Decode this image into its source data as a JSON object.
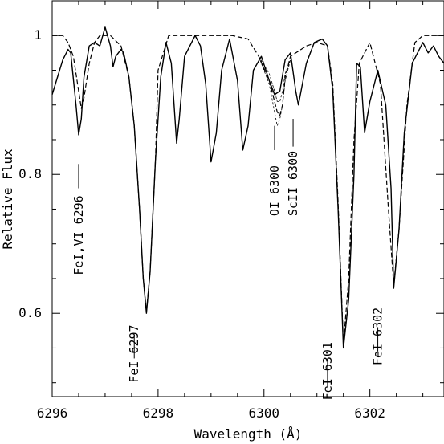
{
  "chart_data": {
    "type": "line",
    "xlabel": "Wavelength (Å)",
    "ylabel": "Relative Flux",
    "xlim": [
      6296.0,
      6303.4
    ],
    "ylim": [
      0.48,
      1.05
    ],
    "xticks": [
      6296,
      6298,
      6300,
      6302
    ],
    "xtick_labels": [
      "6296",
      "6298",
      "6300",
      "6302"
    ],
    "yticks": [
      0.6,
      0.8,
      1.0
    ],
    "ytick_labels": [
      "0.6",
      "0.8",
      "1"
    ],
    "grid": false,
    "series": [
      {
        "style": "solid",
        "x": [
          6296.0,
          6296.1,
          6296.2,
          6296.3,
          6296.35,
          6296.45,
          6296.5,
          6296.55,
          6296.6,
          6296.7,
          6296.8,
          6296.9,
          6297.0,
          6297.1,
          6297.15,
          6297.2,
          6297.3,
          6297.35,
          6297.45,
          6297.55,
          6297.65,
          6297.72,
          6297.78,
          6297.85,
          6297.95,
          6298.05,
          6298.15,
          6298.25,
          6298.35,
          6298.4,
          6298.5,
          6298.6,
          6298.7,
          6298.8,
          6298.9,
          6299.0,
          6299.1,
          6299.2,
          6299.35,
          6299.5,
          6299.6,
          6299.7,
          6299.8,
          6299.95,
          6300.1,
          6300.2,
          6300.3,
          6300.4,
          6300.5,
          6300.6,
          6300.65,
          6300.8,
          6300.95,
          6301.1,
          6301.2,
          6301.3,
          6301.4,
          6301.5,
          6301.6,
          6301.7,
          6301.75,
          6301.82,
          6301.9,
          6302.0,
          6302.15,
          6302.3,
          6302.4,
          6302.45,
          6302.55,
          6302.65,
          6302.8,
          6303.0,
          6303.1,
          6303.2,
          6303.3,
          6303.4
        ],
        "y": [
          0.915,
          0.94,
          0.965,
          0.98,
          0.975,
          0.9,
          0.857,
          0.88,
          0.94,
          0.985,
          0.99,
          0.985,
          1.012,
          0.985,
          0.955,
          0.97,
          0.98,
          0.975,
          0.94,
          0.87,
          0.75,
          0.65,
          0.6,
          0.66,
          0.82,
          0.94,
          0.99,
          0.96,
          0.845,
          0.88,
          0.97,
          0.985,
          1.0,
          0.985,
          0.93,
          0.818,
          0.86,
          0.95,
          0.995,
          0.935,
          0.835,
          0.87,
          0.95,
          0.97,
          0.935,
          0.915,
          0.92,
          0.965,
          0.975,
          0.92,
          0.9,
          0.96,
          0.99,
          0.995,
          0.985,
          0.92,
          0.75,
          0.55,
          0.62,
          0.8,
          0.96,
          0.955,
          0.86,
          0.905,
          0.95,
          0.9,
          0.78,
          0.636,
          0.72,
          0.86,
          0.96,
          0.99,
          0.975,
          0.985,
          0.97,
          0.96
        ]
      },
      {
        "style": "dashed",
        "x": [
          6296.0,
          6296.2,
          6296.3,
          6296.4,
          6296.5,
          6296.55,
          6296.6,
          6296.7,
          6296.8,
          6296.9,
          6297.1,
          6297.3,
          6297.45,
          6297.55,
          6297.65,
          6297.72,
          6297.78,
          6297.85,
          6297.95,
          6298.0,
          6298.2,
          6298.6,
          6299.0,
          6299.4,
          6299.7,
          6299.9,
          6300.1,
          6300.2,
          6300.25,
          6300.3,
          6300.35,
          6300.4,
          6300.5,
          6300.6,
          6300.8,
          6301.0,
          6301.2,
          6301.3,
          6301.4,
          6301.5,
          6301.6,
          6301.7,
          6301.8,
          6302.0,
          6302.2,
          6302.35,
          6302.45,
          6302.55,
          6302.7,
          6302.85,
          6303.0,
          6303.4
        ],
        "y": [
          1.0,
          1.0,
          0.99,
          0.97,
          0.92,
          0.895,
          0.91,
          0.96,
          0.99,
          1.0,
          1.0,
          0.985,
          0.94,
          0.87,
          0.75,
          0.65,
          0.603,
          0.66,
          0.82,
          0.95,
          1.0,
          1.0,
          1.0,
          1.0,
          0.995,
          0.97,
          0.935,
          0.905,
          0.89,
          0.885,
          0.9,
          0.94,
          0.97,
          0.975,
          0.985,
          0.99,
          0.985,
          0.93,
          0.76,
          0.555,
          0.65,
          0.85,
          0.96,
          0.99,
          0.93,
          0.75,
          0.64,
          0.72,
          0.9,
          0.99,
          1.0,
          1.0
        ]
      },
      {
        "style": "dashed-light",
        "x": [
          6299.9,
          6300.1,
          6300.2,
          6300.25,
          6300.3,
          6300.35,
          6300.4,
          6300.5
        ],
        "y": [
          0.97,
          0.93,
          0.89,
          0.87,
          0.88,
          0.9,
          0.935,
          0.965
        ]
      },
      {
        "style": "dashed-light",
        "x": [
          6299.9,
          6300.1,
          6300.2,
          6300.25,
          6300.3,
          6300.35,
          6300.4,
          6300.5
        ],
        "y": [
          0.97,
          0.945,
          0.92,
          0.905,
          0.905,
          0.92,
          0.945,
          0.965
        ]
      }
    ],
    "annotations": [
      {
        "text": "FeI,VI 6296",
        "x": 6296.5,
        "y_text": 0.655,
        "tick": [
          0.815,
          0.78
        ]
      },
      {
        "text": "FeI 6297",
        "x": 6297.55,
        "y_text": 0.5,
        "tick": [
          0.57,
          0.535
        ]
      },
      {
        "text": "OI 6300",
        "x": 6300.2,
        "y_text": 0.74,
        "tick": [
          0.87,
          0.835
        ]
      },
      {
        "text": "ScII 6300",
        "x": 6300.55,
        "y_text": 0.74,
        "tick": [
          0.88,
          0.84
        ]
      },
      {
        "text": "FeI 6301",
        "x": 6301.2,
        "y_text": 0.475,
        "tick": [
          0.535,
          0.495
        ]
      },
      {
        "text": "FeI 6302",
        "x": 6302.15,
        "y_text": 0.525,
        "tick": [
          0.58,
          0.545
        ]
      }
    ]
  }
}
